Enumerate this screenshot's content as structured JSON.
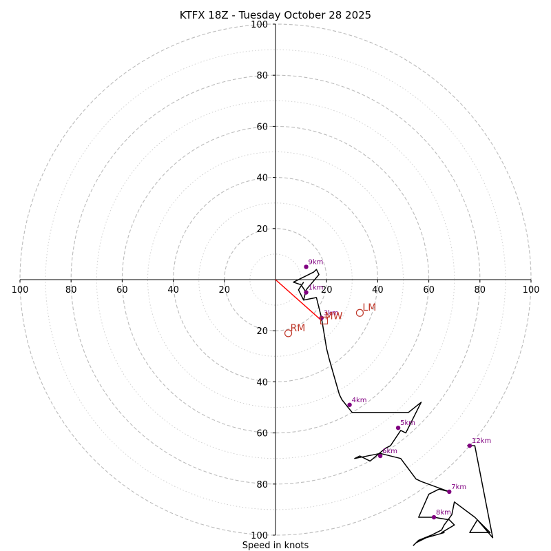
{
  "chart_data": {
    "type": "hodograph",
    "title": "KTFX 18Z - Tuesday October 28 2025",
    "xlabel": "Speed in knots",
    "range": [
      -100,
      100
    ],
    "major_rings": [
      20,
      40,
      60,
      80,
      100
    ],
    "minor_rings": [
      10,
      30,
      50,
      70,
      90
    ],
    "x_ticks": [
      "100",
      "80",
      "60",
      "40",
      "20",
      "20",
      "40",
      "60",
      "80",
      "100"
    ],
    "x_tick_values": [
      -100,
      -80,
      -60,
      -40,
      -20,
      20,
      40,
      60,
      80,
      100
    ],
    "y_ticks": [
      "100",
      "80",
      "60",
      "40",
      "20",
      "20",
      "40",
      "60",
      "80",
      "100"
    ],
    "y_tick_values": [
      100,
      80,
      60,
      40,
      20,
      -20,
      -40,
      -60,
      -80,
      -100
    ],
    "hodograph_line": [
      [
        11,
        -8
      ],
      [
        16,
        -7
      ],
      [
        18,
        -15
      ],
      [
        20,
        -27
      ],
      [
        21,
        -31
      ],
      [
        23,
        -38
      ],
      [
        25,
        -45
      ],
      [
        26,
        -47
      ],
      [
        30,
        -52
      ],
      [
        52,
        -52
      ],
      [
        57,
        -48
      ],
      [
        51,
        -60
      ],
      [
        49,
        -59
      ],
      [
        45,
        -65
      ],
      [
        43,
        -66
      ],
      [
        37,
        -71
      ],
      [
        33,
        -69
      ],
      [
        31,
        -70
      ],
      [
        41,
        -68
      ],
      [
        49,
        -70
      ],
      [
        55,
        -78
      ],
      [
        57,
        -79
      ],
      [
        68,
        -83
      ],
      [
        64,
        -82
      ],
      [
        60,
        -84
      ],
      [
        56,
        -93
      ],
      [
        62,
        -93
      ],
      [
        68,
        -94
      ],
      [
        70,
        -96
      ],
      [
        65,
        -99
      ],
      [
        66,
        -99
      ],
      [
        59,
        -101
      ],
      [
        55,
        -103
      ],
      [
        54,
        -104
      ],
      [
        56,
        -102
      ],
      [
        61,
        -100
      ],
      [
        65,
        -98
      ],
      [
        66,
        -96
      ],
      [
        69,
        -92
      ],
      [
        70,
        -87
      ],
      [
        78,
        -93
      ],
      [
        84,
        -99
      ],
      [
        76,
        -99
      ],
      [
        79,
        -94
      ],
      [
        85,
        -101
      ],
      [
        78,
        -65
      ],
      [
        77,
        -65
      ],
      [
        75,
        -65
      ]
    ],
    "hodograph_start_segment": [
      [
        12,
        -5
      ],
      [
        10,
        -2
      ],
      [
        7,
        -1
      ],
      [
        15,
        3
      ],
      [
        16,
        4
      ],
      [
        17,
        2
      ],
      [
        12,
        -4
      ],
      [
        11,
        -8
      ],
      [
        9,
        -4
      ],
      [
        11,
        -1
      ]
    ],
    "height_markers": [
      {
        "label": "1km",
        "x": 12,
        "y": -5
      },
      {
        "label": "3km",
        "x": 18,
        "y": -15
      },
      {
        "label": "4km",
        "x": 29,
        "y": -49
      },
      {
        "label": "5km",
        "x": 48,
        "y": -58
      },
      {
        "label": "6km",
        "x": 41,
        "y": -69
      },
      {
        "label": "7km",
        "x": 68,
        "y": -83
      },
      {
        "label": "8km",
        "x": 62,
        "y": -93
      },
      {
        "label": "9km",
        "x": 12,
        "y": 5
      },
      {
        "label": "12km",
        "x": 76,
        "y": -65
      }
    ],
    "storm_motion": {
      "RM": {
        "label": "RM",
        "x": 5,
        "y": -21
      },
      "LM": {
        "label": "LM",
        "x": 33,
        "y": -13
      },
      "MW": {
        "label": "MW",
        "x": 19,
        "y": -16
      }
    },
    "shear_vector": [
      [
        0,
        0
      ],
      [
        18,
        -16
      ]
    ],
    "colors": {
      "rings": "#bbbbbb",
      "hodograph": "#000000",
      "markers": "#800080",
      "storm_motion": "#c0392b",
      "shear": "#ff0000"
    }
  }
}
